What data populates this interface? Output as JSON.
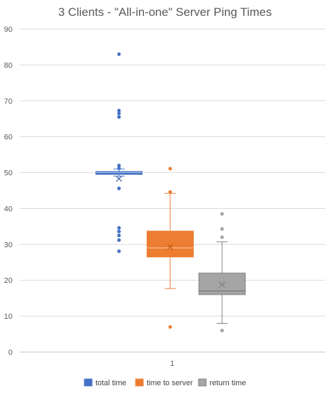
{
  "chart_data": {
    "type": "box",
    "title": "3 Clients - \"All-in-one\" Server Ping Times",
    "xlabel": "",
    "ylabel": "",
    "categories": [
      "1"
    ],
    "ylim": [
      0,
      90
    ],
    "y_ticks": [
      0,
      10,
      20,
      30,
      40,
      50,
      60,
      70,
      80,
      90
    ],
    "grid": true,
    "legend_position": "bottom",
    "series": [
      {
        "name": "total time",
        "color": "#4472C4",
        "whisker_low": 49,
        "q1": 49.5,
        "median": 50,
        "q3": 50.3,
        "whisker_high": 51,
        "mean": 48.3,
        "outliers": [
          83,
          67.3,
          66.5,
          65.5,
          52,
          51.2,
          45.6,
          34.6,
          33.6,
          32.5,
          31.2,
          28.1
        ]
      },
      {
        "name": "time to server",
        "color": "#ED7D31",
        "whisker_low": 17.7,
        "q1": 26.5,
        "median": 29,
        "q3": 33.7,
        "whisker_high": 44.2,
        "mean": 29.3,
        "outliers": [
          51.1,
          44.6,
          7
        ]
      },
      {
        "name": "return time",
        "color": "#A5A5A5",
        "whisker_low": 8,
        "q1": 16,
        "median": 17,
        "q3": 22,
        "whisker_high": 30.7,
        "mean": 18.8,
        "outliers": [
          38.5,
          34.3,
          32,
          6
        ]
      }
    ]
  }
}
